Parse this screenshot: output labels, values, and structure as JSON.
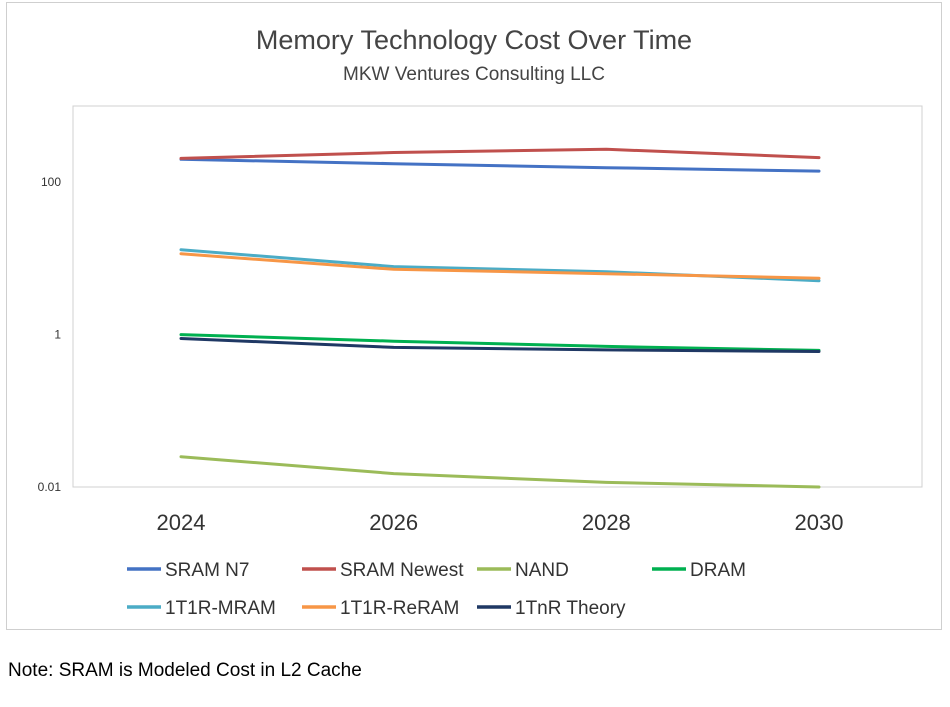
{
  "note": "Note: SRAM is Modeled Cost in L2 Cache",
  "chart_data": {
    "type": "line",
    "title": "Memory Technology Cost Over Time",
    "subtitle": "MKW Ventures Consulting LLC",
    "x": [
      "2024",
      "2026",
      "2028",
      "2030"
    ],
    "y_scale": "log",
    "ylim": [
      0.01,
      1000
    ],
    "y_ticks": [
      "0.01",
      "1",
      "100"
    ],
    "grid": false,
    "legend_position": "bottom",
    "series": [
      {
        "name": "SRAM N7",
        "color": "#4472C4",
        "values": [
          200,
          175,
          155,
          140
        ]
      },
      {
        "name": "SRAM Newest",
        "color": "#C0504D",
        "values": [
          205,
          245,
          270,
          210
        ]
      },
      {
        "name": "NAND",
        "color": "#9BBB59",
        "values": [
          0.025,
          0.015,
          0.0115,
          0.01
        ]
      },
      {
        "name": "DRAM",
        "color": "#00B050",
        "values": [
          1.0,
          0.82,
          0.7,
          0.62
        ]
      },
      {
        "name": "1T1R-MRAM",
        "color": "#4BACC6",
        "values": [
          13,
          7.8,
          6.7,
          5.1
        ]
      },
      {
        "name": "1T1R-ReRAM",
        "color": "#F79646",
        "values": [
          11.5,
          7.2,
          6.3,
          5.5
        ]
      },
      {
        "name": "1TnR Theory",
        "color": "#1F3864",
        "values": [
          0.89,
          0.68,
          0.63,
          0.6
        ]
      }
    ]
  }
}
